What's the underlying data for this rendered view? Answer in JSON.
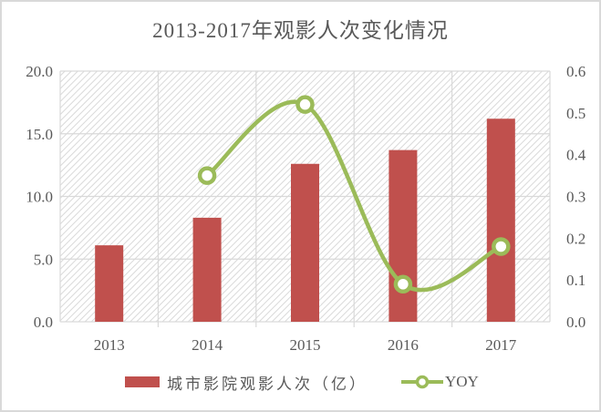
{
  "title": "2013-2017年观影人次变化情况",
  "colors": {
    "bar": "#c0504d",
    "line": "#9bbb59",
    "grid": "#d9d9d9",
    "text": "#595959",
    "hatch": "#d9d9d9"
  },
  "legend": {
    "bar_label": "城市影院观影人次（亿）",
    "line_label": "YOY"
  },
  "chart_data": {
    "type": "bar+line",
    "title": "2013-2017年观影人次变化情况",
    "categories": [
      "2013",
      "2014",
      "2015",
      "2016",
      "2017"
    ],
    "series": [
      {
        "name": "城市影院观影人次（亿）",
        "type": "bar",
        "axis": "left",
        "values": [
          6.1,
          8.3,
          12.6,
          13.7,
          16.2
        ]
      },
      {
        "name": "YOY",
        "type": "line",
        "axis": "right",
        "smooth": true,
        "marker": "circle",
        "values": [
          null,
          0.35,
          0.52,
          0.09,
          0.18
        ]
      }
    ],
    "y_left": {
      "min": 0,
      "max": 20,
      "step": 5,
      "ticks": [
        "0.0",
        "5.0",
        "10.0",
        "15.0",
        "20.0"
      ]
    },
    "y_right": {
      "min": 0,
      "max": 0.6,
      "step": 0.1,
      "ticks": [
        "0.0",
        "0.1",
        "0.2",
        "0.3",
        "0.4",
        "0.5",
        "0.6"
      ]
    },
    "grid": true,
    "plot_background": "diagonal hatch",
    "legend_position": "bottom"
  }
}
